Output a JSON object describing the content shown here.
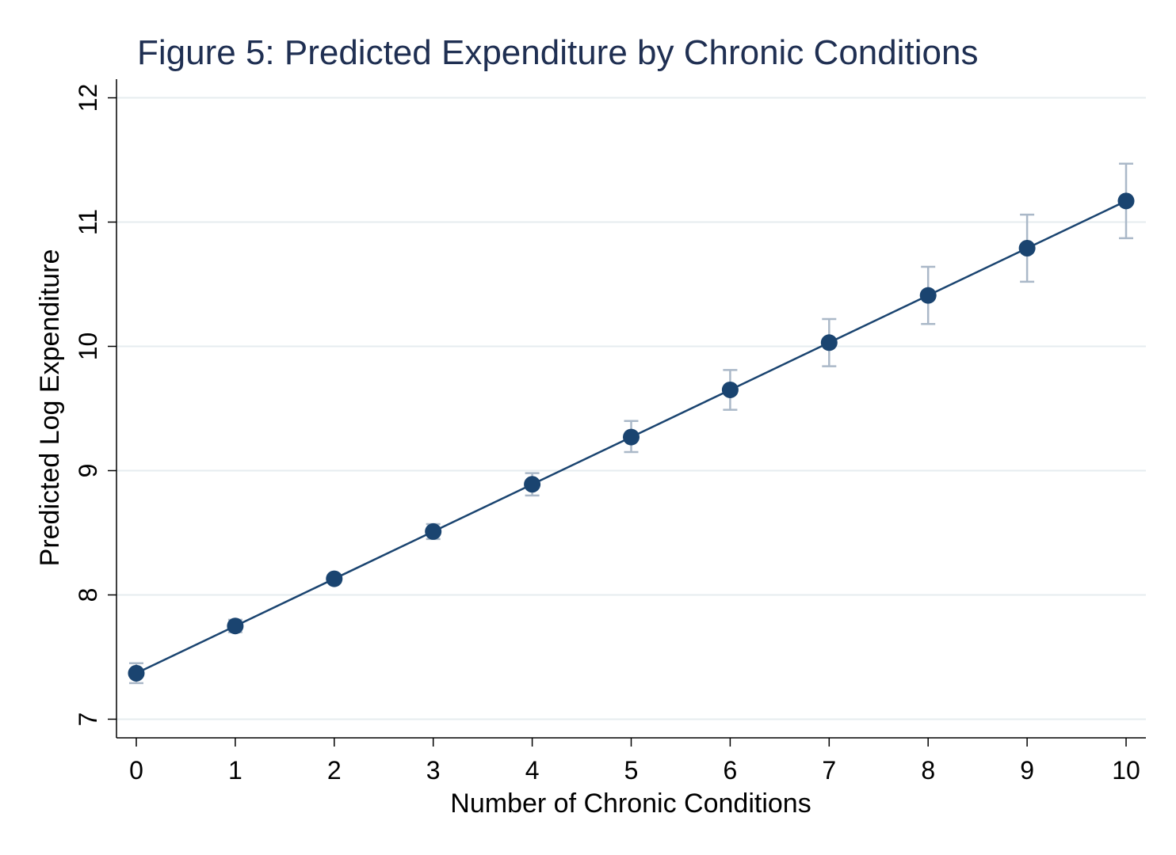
{
  "chart_data": {
    "type": "scatter",
    "title": "Figure 5: Predicted Expenditure by Chronic Conditions",
    "xlabel": "Number of Chronic Conditions",
    "ylabel": "Predicted Log Expenditure",
    "xlim": [
      -0.2,
      10.2
    ],
    "ylim": [
      6.85,
      12.15
    ],
    "x_ticks": [
      0,
      1,
      2,
      3,
      4,
      5,
      6,
      7,
      8,
      9,
      10
    ],
    "y_ticks": [
      7,
      8,
      9,
      10,
      11,
      12
    ],
    "grid": true,
    "legend": "none",
    "colors": {
      "series": "#1a4470",
      "error_bars": "#aab8c8",
      "grid": "#e6ecef",
      "title": "#1f2f52"
    },
    "series": [
      {
        "x": [
          0,
          1,
          2,
          3,
          4,
          5,
          6,
          7,
          8,
          9,
          10
        ],
        "y": [
          7.37,
          7.75,
          8.13,
          8.51,
          8.89,
          9.27,
          9.65,
          10.03,
          10.41,
          10.79,
          11.17
        ],
        "lower": [
          7.29,
          7.7,
          8.1,
          8.45,
          8.8,
          9.15,
          9.49,
          9.84,
          10.18,
          10.52,
          10.87
        ],
        "upper": [
          7.45,
          7.8,
          8.16,
          8.57,
          8.98,
          9.4,
          9.81,
          10.22,
          10.64,
          11.06,
          11.47
        ]
      }
    ]
  }
}
